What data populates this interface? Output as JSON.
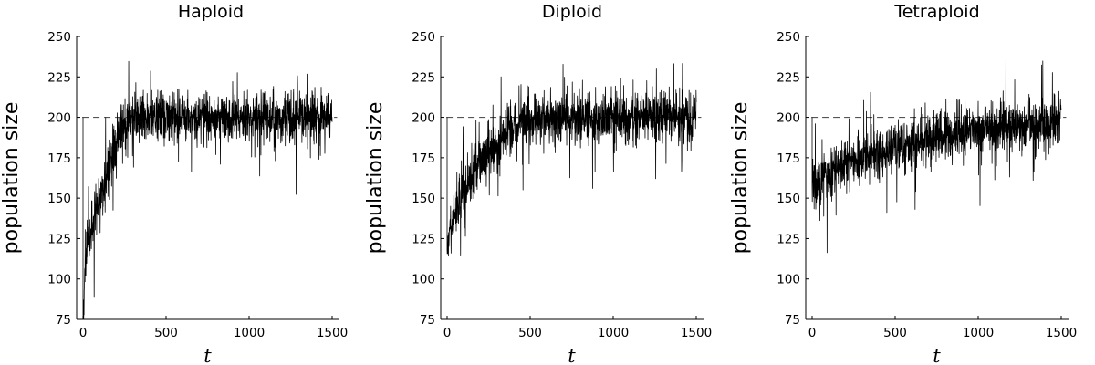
{
  "chart_data": [
    {
      "type": "line",
      "title": "Haploid",
      "xlabel": "t",
      "ylabel": "population size",
      "xlim": [
        0,
        1500
      ],
      "ylim": [
        75,
        250
      ],
      "xticks": [
        0,
        500,
        1000,
        1500
      ],
      "yticks": [
        75,
        100,
        125,
        150,
        175,
        200,
        225,
        250
      ],
      "grid": false,
      "reference_line": {
        "y": 200,
        "style": "dashed",
        "x_range": [
          -5,
          1530
        ]
      },
      "series_color": "#000000",
      "series": [
        {
          "x": [
            0,
            0,
            5,
            10,
            20,
            30,
            40,
            50,
            75,
            100,
            125,
            150,
            175,
            200,
            225,
            250,
            275,
            300,
            350,
            400,
            500,
            600,
            700,
            800,
            900,
            1000,
            1100,
            1200,
            1300,
            1400,
            1500
          ],
          "y": [
            200,
            78,
            85,
            100,
            115,
            122,
            127,
            132,
            140,
            148,
            157,
            166,
            175,
            183,
            190,
            195,
            198,
            200,
            200,
            200,
            200,
            200,
            200,
            200,
            200,
            200,
            200,
            200,
            200,
            200,
            200
          ],
          "noise_amplitude": 14,
          "y_range": [
            75,
            250
          ]
        }
      ]
    },
    {
      "type": "line",
      "title": "Diploid",
      "xlabel": "t",
      "ylabel": "population size",
      "xlim": [
        0,
        1500
      ],
      "ylim": [
        75,
        250
      ],
      "xticks": [
        0,
        500,
        1000,
        1500
      ],
      "yticks": [
        75,
        100,
        125,
        150,
        175,
        200,
        225,
        250
      ],
      "grid": false,
      "reference_line": {
        "y": 200,
        "style": "dashed",
        "x_range": [
          -5,
          1530
        ]
      },
      "series_color": "#000000",
      "series": [
        {
          "x": [
            0,
            0,
            5,
            10,
            25,
            50,
            75,
            100,
            150,
            200,
            250,
            300,
            350,
            400,
            450,
            500,
            550,
            600,
            700,
            800,
            900,
            1000,
            1100,
            1200,
            1300,
            1400,
            1500
          ],
          "y": [
            200,
            118,
            122,
            127,
            134,
            142,
            149,
            155,
            165,
            172,
            179,
            184,
            189,
            193,
            196,
            198,
            200,
            200,
            200,
            200,
            200,
            200,
            200,
            200,
            200,
            200,
            200
          ],
          "noise_amplitude": 14,
          "y_range": [
            75,
            250
          ]
        }
      ]
    },
    {
      "type": "line",
      "title": "Tetraploid",
      "xlabel": "t",
      "ylabel": "population size",
      "xlim": [
        0,
        1500
      ],
      "ylim": [
        75,
        250
      ],
      "xticks": [
        0,
        500,
        1000,
        1500
      ],
      "yticks": [
        75,
        100,
        125,
        150,
        175,
        200,
        225,
        250
      ],
      "grid": false,
      "reference_line": {
        "y": 200,
        "style": "dashed",
        "x_range": [
          -5,
          1530
        ]
      },
      "series_color": "#000000",
      "series": [
        {
          "x": [
            0,
            0,
            5,
            10,
            50,
            100,
            200,
            300,
            400,
            500,
            600,
            700,
            800,
            900,
            1000,
            1100,
            1200,
            1300,
            1400,
            1500
          ],
          "y": [
            200,
            158,
            160,
            161,
            163,
            166,
            171,
            175,
            178,
            181,
            184,
            186,
            188,
            190,
            192,
            193,
            194,
            195,
            196,
            197
          ],
          "noise_amplitude": 14,
          "y_range": [
            75,
            250
          ]
        }
      ]
    }
  ]
}
